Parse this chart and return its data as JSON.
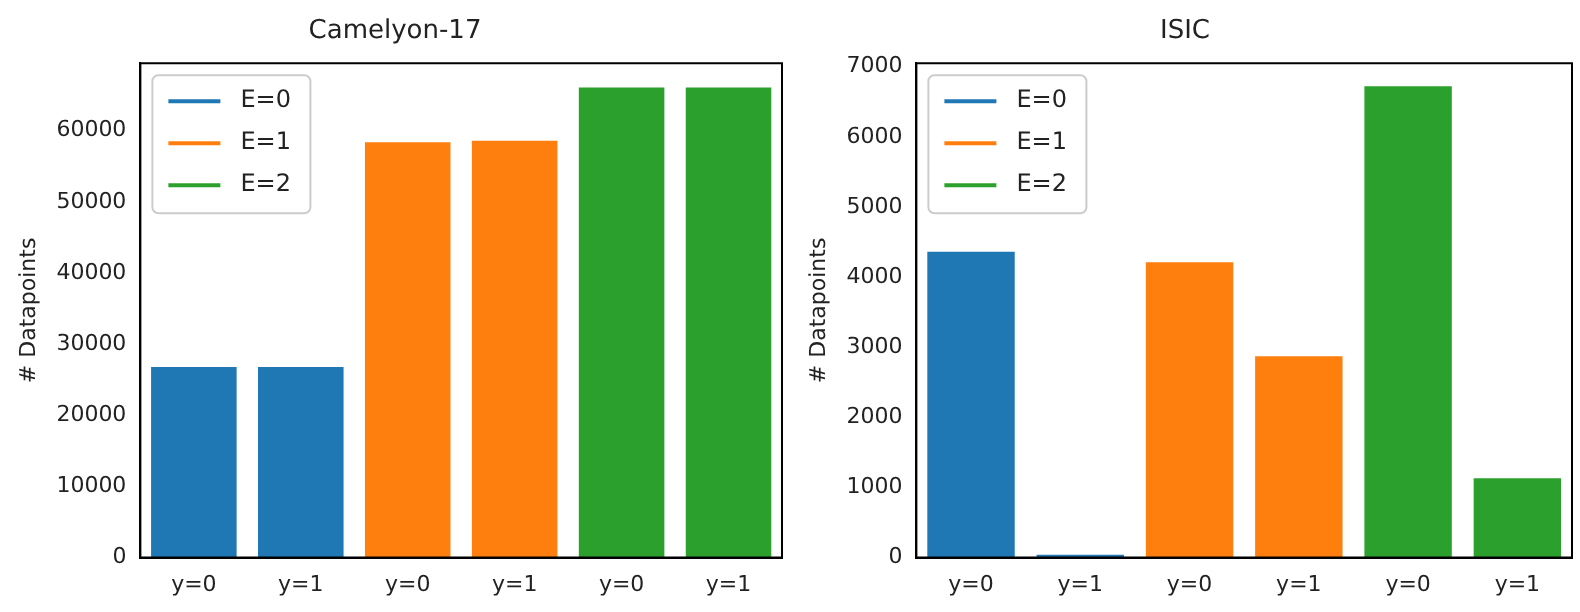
{
  "chart_data": [
    {
      "type": "bar",
      "title": "Camelyon-17",
      "ylabel": "# Datapoints",
      "categories": [
        "y=0",
        "y=1",
        "y=0",
        "y=1",
        "y=0",
        "y=1"
      ],
      "series": [
        {
          "name": "E=0",
          "color": "#1f77b4",
          "values": [
            26800,
            26800,
            null,
            null,
            null,
            null
          ]
        },
        {
          "name": "E=1",
          "color": "#ff7f0e",
          "values": [
            null,
            null,
            58400,
            58600,
            null,
            null
          ]
        },
        {
          "name": "E=2",
          "color": "#2ca02c",
          "values": [
            null,
            null,
            null,
            null,
            66100,
            66100
          ]
        }
      ],
      "ylim": [
        0,
        69500
      ],
      "yticks": [
        0,
        10000,
        20000,
        30000,
        40000,
        50000,
        60000
      ],
      "grid": false,
      "legend": "top left"
    },
    {
      "type": "bar",
      "title": "ISIC",
      "ylabel": "# Datapoints",
      "categories": [
        "y=0",
        "y=1",
        "y=0",
        "y=1",
        "y=0",
        "y=1"
      ],
      "series": [
        {
          "name": "E=0",
          "color": "#1f77b4",
          "values": [
            4360,
            40,
            null,
            null,
            null,
            null
          ]
        },
        {
          "name": "E=1",
          "color": "#ff7f0e",
          "values": [
            null,
            null,
            4210,
            2870,
            null,
            null
          ]
        },
        {
          "name": "E=2",
          "color": "#2ca02c",
          "values": [
            null,
            null,
            null,
            null,
            6720,
            1130
          ]
        }
      ],
      "ylim": [
        0,
        7050
      ],
      "yticks": [
        0,
        1000,
        2000,
        3000,
        4000,
        5000,
        6000,
        7000
      ],
      "grid": false,
      "legend": "top left"
    }
  ]
}
